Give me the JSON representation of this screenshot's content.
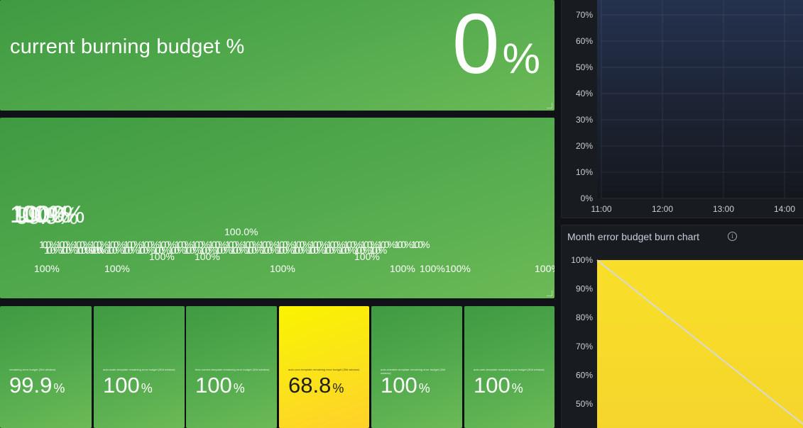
{
  "current_burn": {
    "title": "current burning budget %",
    "value": "0",
    "unit": "%"
  },
  "overlapped_panel": {
    "big_label": "100.0%",
    "labels": [
      "100.0%",
      "100%",
      "100%",
      "100%",
      "100%",
      "100%",
      "100%",
      "100%100%100%100%100%100%100%100%100%100%100%100%100%100%100%100%100%100%100%100%100%100%100%",
      "100%100%100%100%100%100%100%100%100%100%100%100%100%100%100%100%100%100%100%100%100%100%",
      "100%",
      "100%",
      "100%",
      "100%",
      "100%",
      "100%"
    ]
  },
  "stat_boxes": [
    {
      "title": "remaining error budget (30d window)",
      "value": "99.9",
      "unit": "%"
    },
    {
      "title": "auto-scale-template remaining error budget (30d window)",
      "value": "100",
      "unit": "%"
    },
    {
      "title": "time-current-template remaining error budget (30d window)",
      "value": "100",
      "unit": "%"
    },
    {
      "title": "auto-core-template remaining error budget (30d window)",
      "value": "68.8",
      "unit": "%"
    },
    {
      "title": "auto-member-template remaining error budget (30d window)",
      "value": "100",
      "unit": "%"
    },
    {
      "title": "auto-web-template remaining error budget (30d window)",
      "value": "100",
      "unit": "%"
    }
  ],
  "chart_data": [
    {
      "type": "line",
      "title": "",
      "y_ticks": [
        "0%",
        "10%",
        "20%",
        "30%",
        "40%",
        "50%",
        "60%",
        "70%"
      ],
      "x_ticks": [
        "11:00",
        "12:00",
        "13:00",
        "14:00"
      ],
      "ylim": [
        0,
        70
      ],
      "series": [],
      "grid": true
    },
    {
      "type": "area",
      "title": "Month error budget burn chart",
      "y_ticks": [
        "50%",
        "60%",
        "70%",
        "80%",
        "90%",
        "100%"
      ],
      "ylim": [
        50,
        100
      ],
      "fill_color": "#f7dc2a",
      "line_color": "#d8d8d8",
      "series": [
        {
          "x": [
            0,
            1
          ],
          "y": [
            100,
            42
          ]
        }
      ],
      "grid": true
    }
  ],
  "colors": {
    "green": "#54ab4e",
    "yellow": "#fbe21a",
    "dark": "#181b1f"
  }
}
